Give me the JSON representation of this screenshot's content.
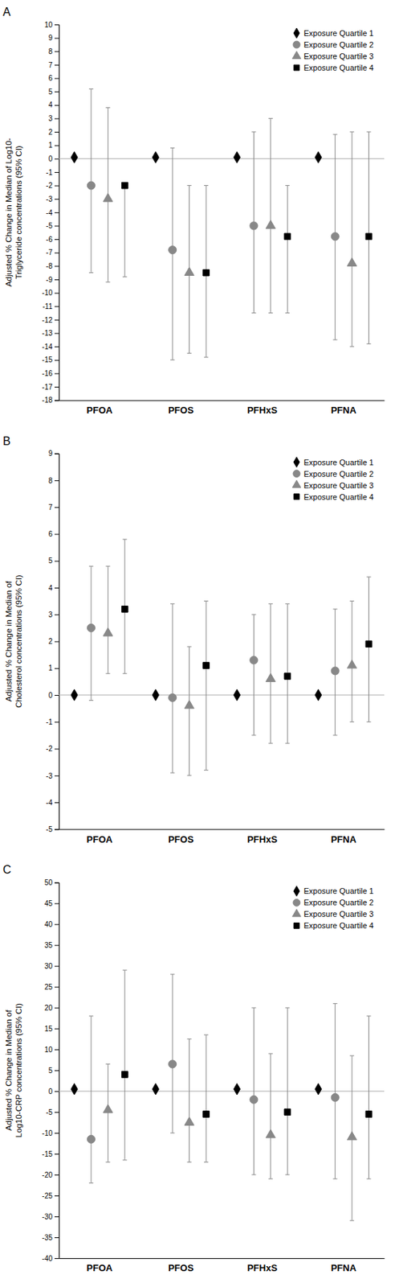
{
  "chart_data": [
    {
      "type": "errorbar",
      "title": "A",
      "ylabel": "Adjusted % Change in Median of Log10-\nTriglyceride concentrations (95% CI)",
      "categories": [
        "PFOA",
        "PFOS",
        "PFHxS",
        "PFNA"
      ],
      "series": [
        {
          "name": "Exposure Quartile 1",
          "color": "#000000",
          "marker": "diamond",
          "values": [
            0.1,
            0.1,
            0.1,
            0.1
          ]
        },
        {
          "name": "Exposure Quartile 2",
          "color": "#888888",
          "marker": "circle",
          "values": [
            -2.0,
            -6.8,
            -5.0,
            -5.8
          ],
          "ci_low": [
            -8.5,
            -15.0,
            -11.5,
            -13.5
          ],
          "ci_high": [
            5.2,
            0.8,
            2.0,
            1.8
          ]
        },
        {
          "name": "Exposure Quartile 3",
          "color": "#888888",
          "marker": "triangle",
          "values": [
            -3.0,
            -8.5,
            -5.0,
            -7.8
          ],
          "ci_low": [
            -9.2,
            -14.5,
            -11.5,
            -14.0
          ],
          "ci_high": [
            3.8,
            -2.0,
            3.0,
            2.0
          ]
        },
        {
          "name": "Exposure Quartile 4",
          "color": "#000000",
          "marker": "square",
          "values": [
            -2.0,
            -8.5,
            -5.8,
            -5.8
          ],
          "ci_low": [
            -8.8,
            -14.8,
            -11.5,
            -13.8
          ],
          "ci_high": [
            -2.0,
            -2.0,
            -2.0,
            2.0
          ]
        }
      ],
      "ylim": [
        -18,
        10
      ],
      "yticks": [
        10,
        9,
        8,
        7,
        6,
        5,
        4,
        3,
        2,
        1,
        0,
        -1,
        -2,
        -3,
        -4,
        -5,
        -6,
        -7,
        -8,
        -9,
        -10,
        -11,
        -12,
        -13,
        -14,
        -15,
        -16,
        -17,
        -18
      ],
      "hline": 0,
      "legend": "upper right",
      "grid": false
    },
    {
      "type": "errorbar",
      "title": "B",
      "ylabel": "Adjusted % Change in Median of\nCholesterol concentrations (95% CI)",
      "categories": [
        "PFOA",
        "PFOS",
        "PFHxS",
        "PFNA"
      ],
      "series": [
        {
          "name": "Exposure Quartile 1",
          "color": "#000000",
          "marker": "diamond",
          "values": [
            0.0,
            0.0,
            0.0,
            0.0
          ]
        },
        {
          "name": "Exposure Quartile 2",
          "color": "#888888",
          "marker": "circle",
          "values": [
            2.5,
            -0.1,
            1.3,
            0.9
          ],
          "ci_low": [
            -0.2,
            -2.9,
            -1.5,
            -1.5
          ],
          "ci_high": [
            4.8,
            3.4,
            3.0,
            3.2
          ]
        },
        {
          "name": "Exposure Quartile 3",
          "color": "#888888",
          "marker": "triangle",
          "values": [
            2.3,
            -0.4,
            0.6,
            1.1
          ],
          "ci_low": [
            0.8,
            -3.0,
            -1.8,
            -1.0
          ],
          "ci_high": [
            4.8,
            1.8,
            3.4,
            3.5
          ]
        },
        {
          "name": "Exposure Quartile 4",
          "color": "#000000",
          "marker": "square",
          "values": [
            3.2,
            1.1,
            0.7,
            1.9
          ],
          "ci_low": [
            0.8,
            -2.8,
            -1.8,
            -1.0
          ],
          "ci_high": [
            5.8,
            3.5,
            3.4,
            4.4
          ]
        }
      ],
      "ylim": [
        -5,
        9
      ],
      "yticks": [
        9,
        8,
        7,
        6,
        5,
        4,
        3,
        2,
        1,
        0,
        -1,
        -2,
        -3,
        -4,
        -5
      ],
      "hline": 0,
      "legend": "upper right",
      "grid": false
    },
    {
      "type": "errorbar",
      "title": "C",
      "ylabel": "Adjusted % Change in Median of\nLog10-CRP concentrations (95% CI)",
      "categories": [
        "PFOA",
        "PFOS",
        "PFHxS",
        "PFNA"
      ],
      "series": [
        {
          "name": "Exposure Quartile 1",
          "color": "#000000",
          "marker": "diamond",
          "values": [
            0.5,
            0.5,
            0.5,
            0.5
          ]
        },
        {
          "name": "Exposure Quartile 2",
          "color": "#888888",
          "marker": "circle",
          "values": [
            -11.5,
            6.5,
            -2.0,
            -1.5
          ],
          "ci_low": [
            -22.0,
            -10.0,
            -20.0,
            -21.0
          ],
          "ci_high": [
            18.0,
            28.0,
            20.0,
            21.0
          ]
        },
        {
          "name": "Exposure Quartile 3",
          "color": "#888888",
          "marker": "triangle",
          "values": [
            -4.5,
            -7.5,
            -10.5,
            -11.0
          ],
          "ci_low": [
            -17.0,
            -17.0,
            -21.0,
            -31.0
          ],
          "ci_high": [
            6.5,
            12.5,
            9.0,
            8.5
          ]
        },
        {
          "name": "Exposure Quartile 4",
          "color": "#000000",
          "marker": "square",
          "values": [
            4.0,
            -5.5,
            -5.0,
            -5.5
          ],
          "ci_low": [
            -16.5,
            -17.0,
            -20.0,
            -21.0
          ],
          "ci_high": [
            29.0,
            13.5,
            20.0,
            18.0
          ]
        }
      ],
      "ylim": [
        -40,
        50
      ],
      "yticks": [
        50,
        45,
        40,
        35,
        30,
        25,
        20,
        15,
        10,
        5,
        0,
        -5,
        -10,
        -15,
        -20,
        -25,
        -30,
        -35,
        -40
      ],
      "hline": 0,
      "legend": "upper right",
      "grid": false
    }
  ]
}
